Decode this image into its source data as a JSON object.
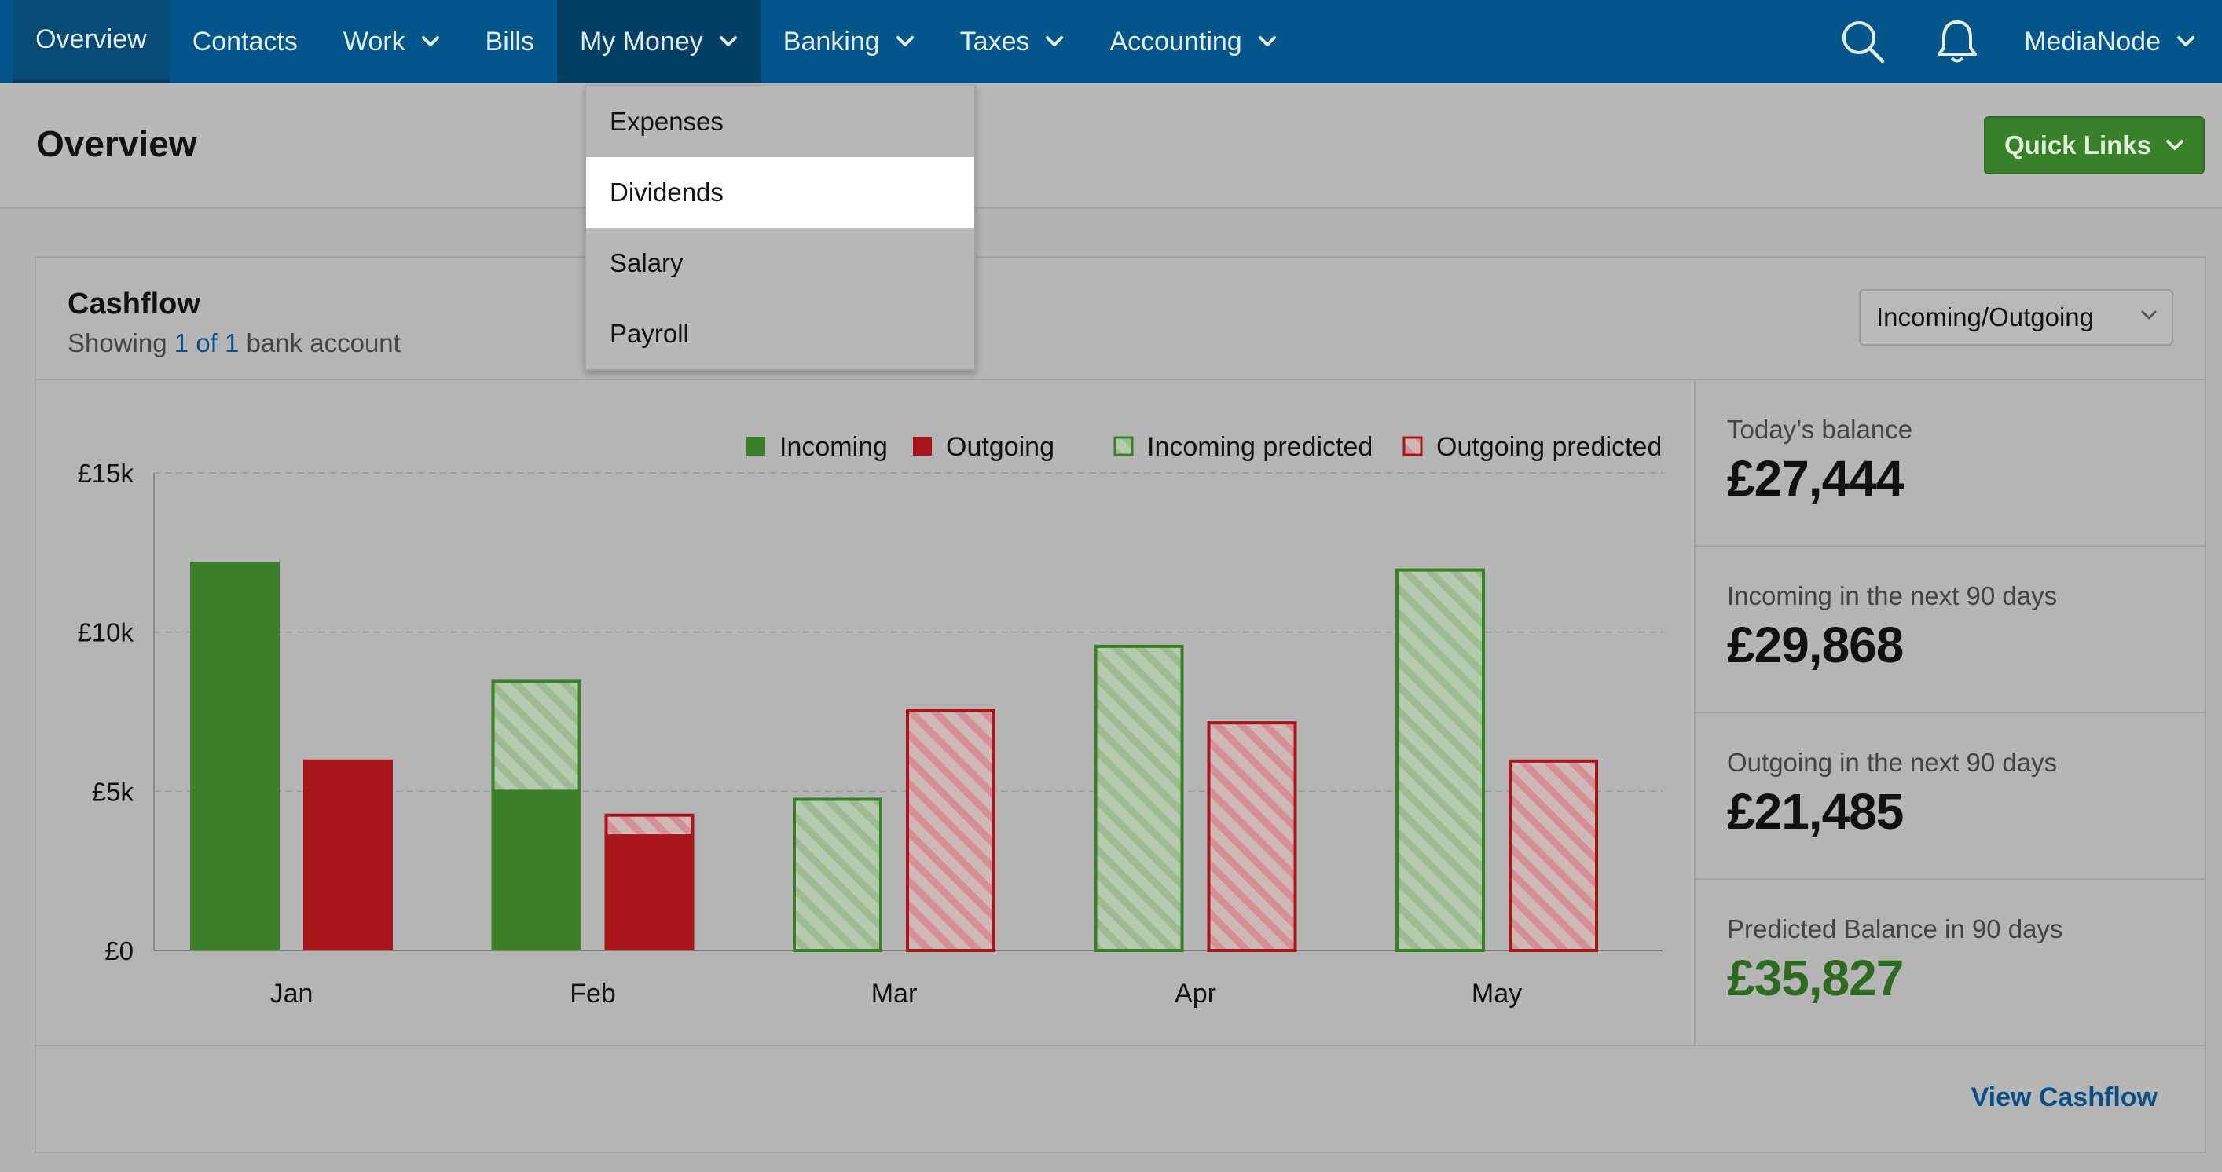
{
  "nav": {
    "items": [
      {
        "label": "Overview",
        "state": "active",
        "dropdown": false
      },
      {
        "label": "Contacts",
        "state": "",
        "dropdown": false
      },
      {
        "label": "Work",
        "state": "",
        "dropdown": true
      },
      {
        "label": "Bills",
        "state": "",
        "dropdown": false
      },
      {
        "label": "My Money",
        "state": "open",
        "dropdown": true
      },
      {
        "label": "Banking",
        "state": "",
        "dropdown": true
      },
      {
        "label": "Taxes",
        "state": "",
        "dropdown": true
      },
      {
        "label": "Accounting",
        "state": "",
        "dropdown": true
      }
    ],
    "search_icon": "search-icon",
    "notifications_icon": "bell-icon",
    "org_name": "MediaNode"
  },
  "dropdown": {
    "items": [
      "Expenses",
      "Dividends",
      "Salary",
      "Payroll"
    ],
    "highlighted": "Dividends"
  },
  "header": {
    "title": "Overview",
    "quick_links": "Quick Links"
  },
  "cashflow": {
    "title": "Cashflow",
    "subtitle_prefix": "Showing ",
    "subtitle_link": "1 of 1",
    "subtitle_suffix": " bank account",
    "view_select": "Incoming/Outgoing",
    "view_link": "View Cashflow"
  },
  "stats": [
    {
      "label": "Today’s balance",
      "value": "£27,444",
      "highlight": false
    },
    {
      "label": "Incoming in the next 90 days",
      "value": "£29,868",
      "highlight": false
    },
    {
      "label": "Outgoing in the next 90 days",
      "value": "£21,485",
      "highlight": false
    },
    {
      "label": "Predicted Balance in 90 days",
      "value": "£35,827",
      "highlight": true
    }
  ],
  "colors": {
    "incoming": "#3a8029",
    "outgoing": "#a8161a",
    "incoming_predicted_fill": "#a9c4a0",
    "outgoing_predicted_fill": "#d49a9c"
  },
  "chart_data": {
    "type": "bar",
    "categories": [
      "Jan",
      "Feb",
      "Mar",
      "Apr",
      "May"
    ],
    "yticks": [
      "£0",
      "£5k",
      "£10k",
      "£15k"
    ],
    "ylim": [
      0,
      15000
    ],
    "grid": true,
    "legend_position": "top-right",
    "legend": [
      "Incoming",
      "Outgoing",
      "Incoming predicted",
      "Outgoing predicted"
    ],
    "series": [
      {
        "name": "Incoming",
        "values": [
          12200,
          5000,
          0,
          0,
          0
        ]
      },
      {
        "name": "Outgoing",
        "values": [
          6000,
          3600,
          0,
          0,
          0
        ]
      },
      {
        "name": "Incoming predicted",
        "values": [
          0,
          3500,
          4800,
          9600,
          12000
        ]
      },
      {
        "name": "Outgoing predicted",
        "values": [
          0,
          700,
          7600,
          7200,
          6000
        ]
      }
    ]
  }
}
